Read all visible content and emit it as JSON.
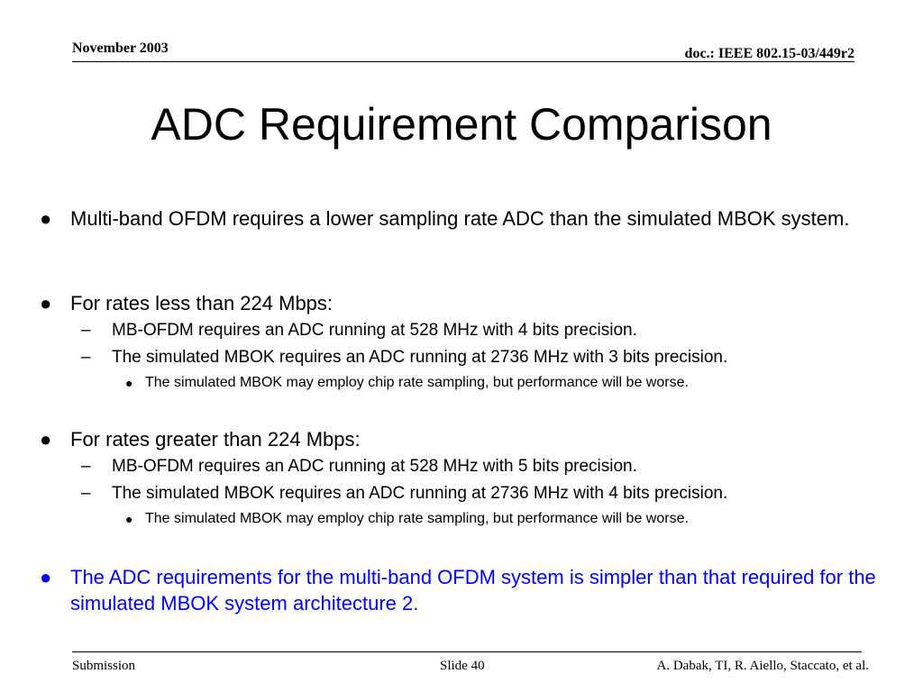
{
  "header": {
    "date": "November 2003",
    "doc": "doc.: IEEE 802.15-03/449r2"
  },
  "slide": {
    "title": "ADC Requirement Comparison",
    "accent_color": "#0000ff",
    "bullets": [
      {
        "text": "Multi-band OFDM requires a lower sampling rate ADC than the simulated MBOK system."
      },
      {
        "text": "For rates less than 224 Mbps:",
        "sub": [
          {
            "text": "MB-OFDM requires an ADC running at 528 MHz with 4 bits precision."
          },
          {
            "text": "The simulated MBOK requires an ADC running at 2736 MHz with 3 bits precision.",
            "sub": [
              {
                "text": "The simulated MBOK may employ chip rate sampling, but performance will be worse."
              }
            ]
          }
        ]
      },
      {
        "text": "For rates greater than 224 Mbps:",
        "sub": [
          {
            "text": "MB-OFDM requires an ADC running at 528 MHz with 5 bits precision."
          },
          {
            "text": "The simulated MBOK requires an ADC running at 2736 MHz with 4 bits precision.",
            "sub": [
              {
                "text": "The simulated MBOK may employ chip rate sampling, but performance will be worse."
              }
            ]
          }
        ]
      },
      {
        "text": "The ADC requirements for the multi-band OFDM system is simpler than that required for the simulated MBOK system architecture 2.",
        "highlight": true
      }
    ]
  },
  "footer": {
    "left": "Submission",
    "center": "Slide 40",
    "right": "A. Dabak, TI, R. Aiello, Staccato, et al."
  }
}
